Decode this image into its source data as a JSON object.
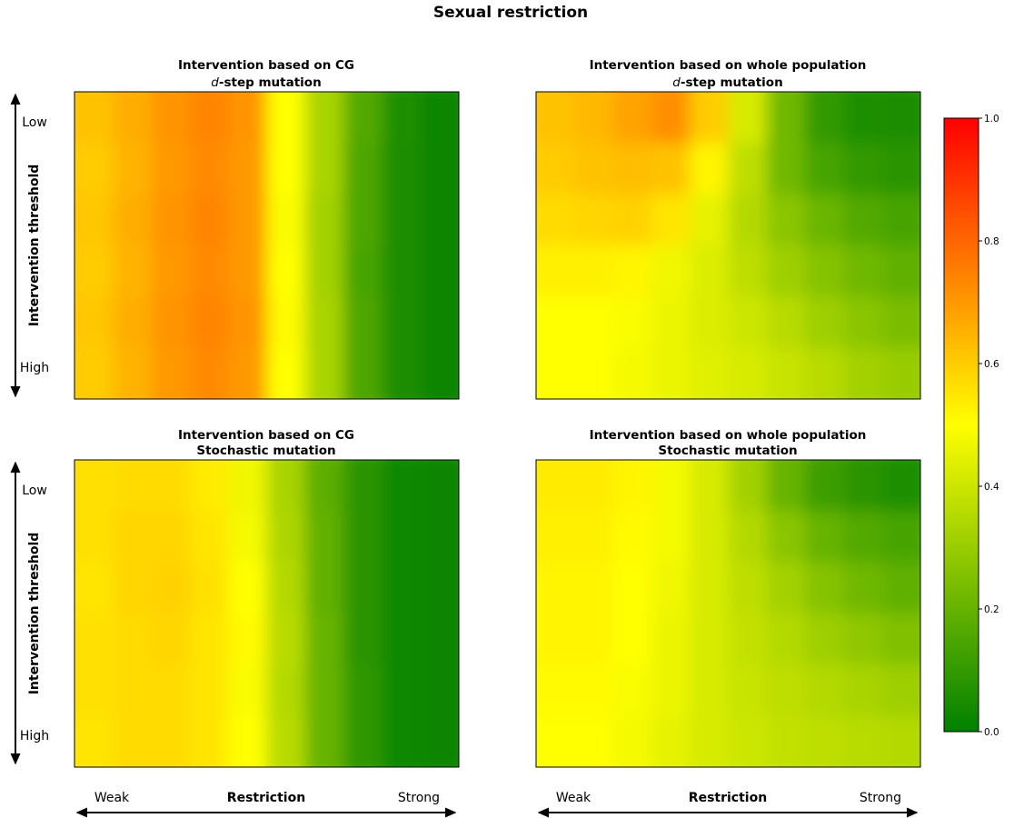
{
  "figure": {
    "title": "Sexual restriction",
    "y_axis_label": "Intervention threshold",
    "y_low_label": "Low",
    "y_high_label": "High",
    "x_axis_label": "Restriction",
    "x_weak_label": "Weak",
    "x_strong_label": "Strong"
  },
  "colorbar": {
    "min": 0.0,
    "max": 1.0,
    "ticks": [
      0.0,
      0.2,
      0.4,
      0.6,
      0.8,
      1.0
    ],
    "tick_labels": [
      "0.0",
      "0.2",
      "0.4",
      "0.6",
      "0.8",
      "1.0"
    ],
    "colormap": [
      {
        "value": 0.0,
        "color": "#008000"
      },
      {
        "value": 0.5,
        "color": "#ffff00"
      },
      {
        "value": 1.0,
        "color": "#ff0000"
      }
    ]
  },
  "chart_data": [
    {
      "type": "heatmap",
      "title_line1": "Intervention based on CG",
      "title_line2_italic": "d",
      "title_line2_rest": "-step mutation",
      "xlabel": "Restriction",
      "ylabel": "Intervention threshold",
      "rows": [
        "Low",
        "",
        "",
        "",
        "",
        "High"
      ],
      "values": [
        [
          0.62,
          0.66,
          0.71,
          0.74,
          0.71,
          0.5,
          0.33,
          0.16,
          0.06,
          0.02
        ],
        [
          0.6,
          0.65,
          0.7,
          0.73,
          0.7,
          0.5,
          0.33,
          0.15,
          0.05,
          0.02
        ],
        [
          0.61,
          0.66,
          0.71,
          0.74,
          0.7,
          0.49,
          0.32,
          0.15,
          0.05,
          0.02
        ],
        [
          0.6,
          0.65,
          0.7,
          0.73,
          0.7,
          0.5,
          0.32,
          0.14,
          0.05,
          0.02
        ],
        [
          0.61,
          0.66,
          0.71,
          0.74,
          0.71,
          0.51,
          0.33,
          0.15,
          0.05,
          0.02
        ],
        [
          0.6,
          0.65,
          0.7,
          0.73,
          0.7,
          0.5,
          0.33,
          0.15,
          0.05,
          0.02
        ]
      ]
    },
    {
      "type": "heatmap",
      "title_line1": "Intervention based on whole population",
      "title_line2_italic": "d",
      "title_line2_rest": "-step mutation",
      "xlabel": "Restriction",
      "ylabel": "Intervention threshold",
      "rows": [
        "Low",
        "",
        "",
        "",
        "",
        "High"
      ],
      "values": [
        [
          0.62,
          0.64,
          0.68,
          0.72,
          0.6,
          0.42,
          0.22,
          0.1,
          0.06,
          0.05
        ],
        [
          0.6,
          0.62,
          0.63,
          0.62,
          0.52,
          0.37,
          0.22,
          0.14,
          0.1,
          0.08
        ],
        [
          0.57,
          0.58,
          0.59,
          0.55,
          0.45,
          0.35,
          0.27,
          0.21,
          0.16,
          0.14
        ],
        [
          0.53,
          0.53,
          0.52,
          0.47,
          0.43,
          0.37,
          0.31,
          0.26,
          0.22,
          0.19
        ],
        [
          0.5,
          0.5,
          0.49,
          0.46,
          0.43,
          0.4,
          0.36,
          0.31,
          0.27,
          0.24
        ],
        [
          0.5,
          0.5,
          0.48,
          0.46,
          0.44,
          0.42,
          0.39,
          0.36,
          0.32,
          0.3
        ]
      ]
    },
    {
      "type": "heatmap",
      "title_line1": "Intervention based on CG",
      "title_line2_italic": "",
      "title_line2_rest": "Stochastic mutation",
      "xlabel": "Restriction",
      "ylabel": "Intervention threshold",
      "rows": [
        "Low",
        "",
        "",
        "",
        "",
        "High"
      ],
      "values": [
        [
          0.56,
          0.57,
          0.57,
          0.54,
          0.47,
          0.33,
          0.18,
          0.08,
          0.03,
          0.02
        ],
        [
          0.56,
          0.58,
          0.58,
          0.55,
          0.48,
          0.34,
          0.19,
          0.08,
          0.03,
          0.02
        ],
        [
          0.55,
          0.58,
          0.59,
          0.56,
          0.5,
          0.35,
          0.19,
          0.08,
          0.03,
          0.02
        ],
        [
          0.56,
          0.57,
          0.58,
          0.55,
          0.51,
          0.36,
          0.2,
          0.08,
          0.03,
          0.02
        ],
        [
          0.56,
          0.57,
          0.57,
          0.55,
          0.49,
          0.35,
          0.2,
          0.09,
          0.03,
          0.02
        ],
        [
          0.55,
          0.57,
          0.57,
          0.55,
          0.5,
          0.36,
          0.2,
          0.09,
          0.03,
          0.02
        ]
      ]
    },
    {
      "type": "heatmap",
      "title_line1": "Intervention based on whole population",
      "title_line2_italic": "",
      "title_line2_rest": "Stochastic mutation",
      "xlabel": "Restriction",
      "ylabel": "Intervention threshold",
      "rows": [
        "Low",
        "",
        "",
        "",
        "",
        "High"
      ],
      "values": [
        [
          0.54,
          0.54,
          0.52,
          0.48,
          0.42,
          0.32,
          0.2,
          0.12,
          0.08,
          0.06
        ],
        [
          0.53,
          0.53,
          0.51,
          0.48,
          0.42,
          0.35,
          0.27,
          0.2,
          0.16,
          0.14
        ],
        [
          0.52,
          0.52,
          0.5,
          0.47,
          0.42,
          0.37,
          0.32,
          0.26,
          0.22,
          0.19
        ],
        [
          0.52,
          0.52,
          0.5,
          0.46,
          0.42,
          0.38,
          0.35,
          0.31,
          0.28,
          0.25
        ],
        [
          0.51,
          0.51,
          0.49,
          0.46,
          0.42,
          0.39,
          0.37,
          0.35,
          0.33,
          0.31
        ],
        [
          0.5,
          0.5,
          0.48,
          0.45,
          0.42,
          0.4,
          0.38,
          0.37,
          0.36,
          0.35
        ]
      ]
    }
  ]
}
